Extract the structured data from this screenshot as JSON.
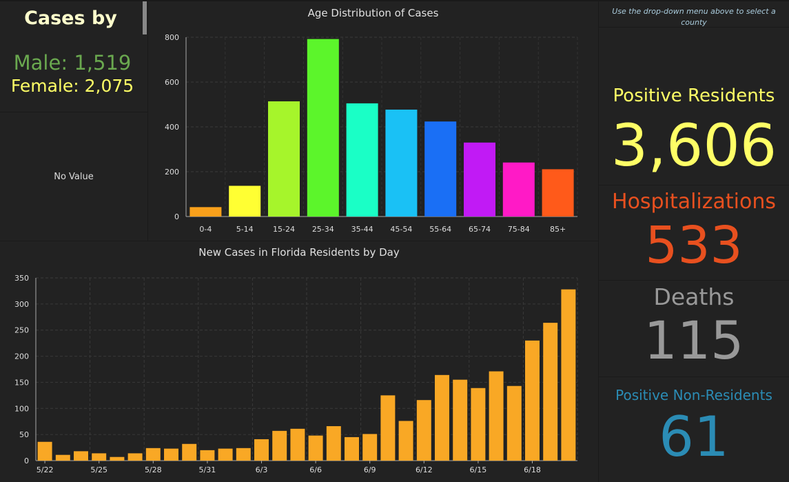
{
  "gender": {
    "title": "Cases by Gender",
    "male": "Male: 1,519",
    "female": "Female: 2,075"
  },
  "no_value": "No Value",
  "instructions": "Use the drop-down menu above to select a county",
  "stats": {
    "positive_residents": {
      "label": "Positive Residents",
      "value": "3,606",
      "color": "#ffff66"
    },
    "hospitalizations": {
      "label": "Hospitalizations",
      "value": "533",
      "color": "#e8501f"
    },
    "deaths": {
      "label": "Deaths",
      "value": "115",
      "color": "#999999"
    },
    "positive_non_residents": {
      "label": "Positive Non-Residents",
      "value": "61",
      "color": "#2b8cb5"
    }
  },
  "chart_data": [
    {
      "type": "bar",
      "title": "Age Distribution of Cases",
      "categories": [
        "0-4",
        "5-14",
        "15-24",
        "25-34",
        "35-44",
        "45-54",
        "55-64",
        "65-74",
        "75-84",
        "85+"
      ],
      "values": [
        42,
        137,
        514,
        792,
        505,
        477,
        424,
        330,
        241,
        211
      ],
      "colors": [
        "#f9a01b",
        "#ffff33",
        "#a6f52b",
        "#5cf52b",
        "#1affc6",
        "#1ac1f5",
        "#1a6ff5",
        "#c11af5",
        "#ff1ac6",
        "#ff5a1a"
      ],
      "ylim": [
        0,
        800
      ],
      "yticks": [
        0,
        200,
        400,
        600,
        800
      ],
      "grid": true
    },
    {
      "type": "bar",
      "title": "New Cases in Florida Residents by Day",
      "x": [
        "5/22",
        "5/23",
        "5/24",
        "5/25",
        "5/26",
        "5/27",
        "5/28",
        "5/29",
        "5/30",
        "5/31",
        "6/1",
        "6/2",
        "6/3",
        "6/4",
        "6/5",
        "6/6",
        "6/7",
        "6/8",
        "6/9",
        "6/10",
        "6/11",
        "6/12",
        "6/13",
        "6/14",
        "6/15",
        "6/16",
        "6/17",
        "6/18",
        "6/19",
        "6/20"
      ],
      "values": [
        36,
        11,
        18,
        14,
        7,
        14,
        24,
        23,
        32,
        20,
        23,
        24,
        41,
        57,
        61,
        48,
        66,
        45,
        51,
        125,
        76,
        116,
        164,
        155,
        139,
        171,
        143,
        230,
        264,
        328
      ],
      "tick_labels": [
        "5/22",
        "5/25",
        "5/28",
        "5/31",
        "6/3",
        "6/6",
        "6/9",
        "6/12",
        "6/15",
        "6/18"
      ],
      "color": "#f9a825",
      "ylim": [
        0,
        350
      ],
      "yticks": [
        0,
        50,
        100,
        150,
        200,
        250,
        300,
        350
      ],
      "grid": true
    }
  ]
}
